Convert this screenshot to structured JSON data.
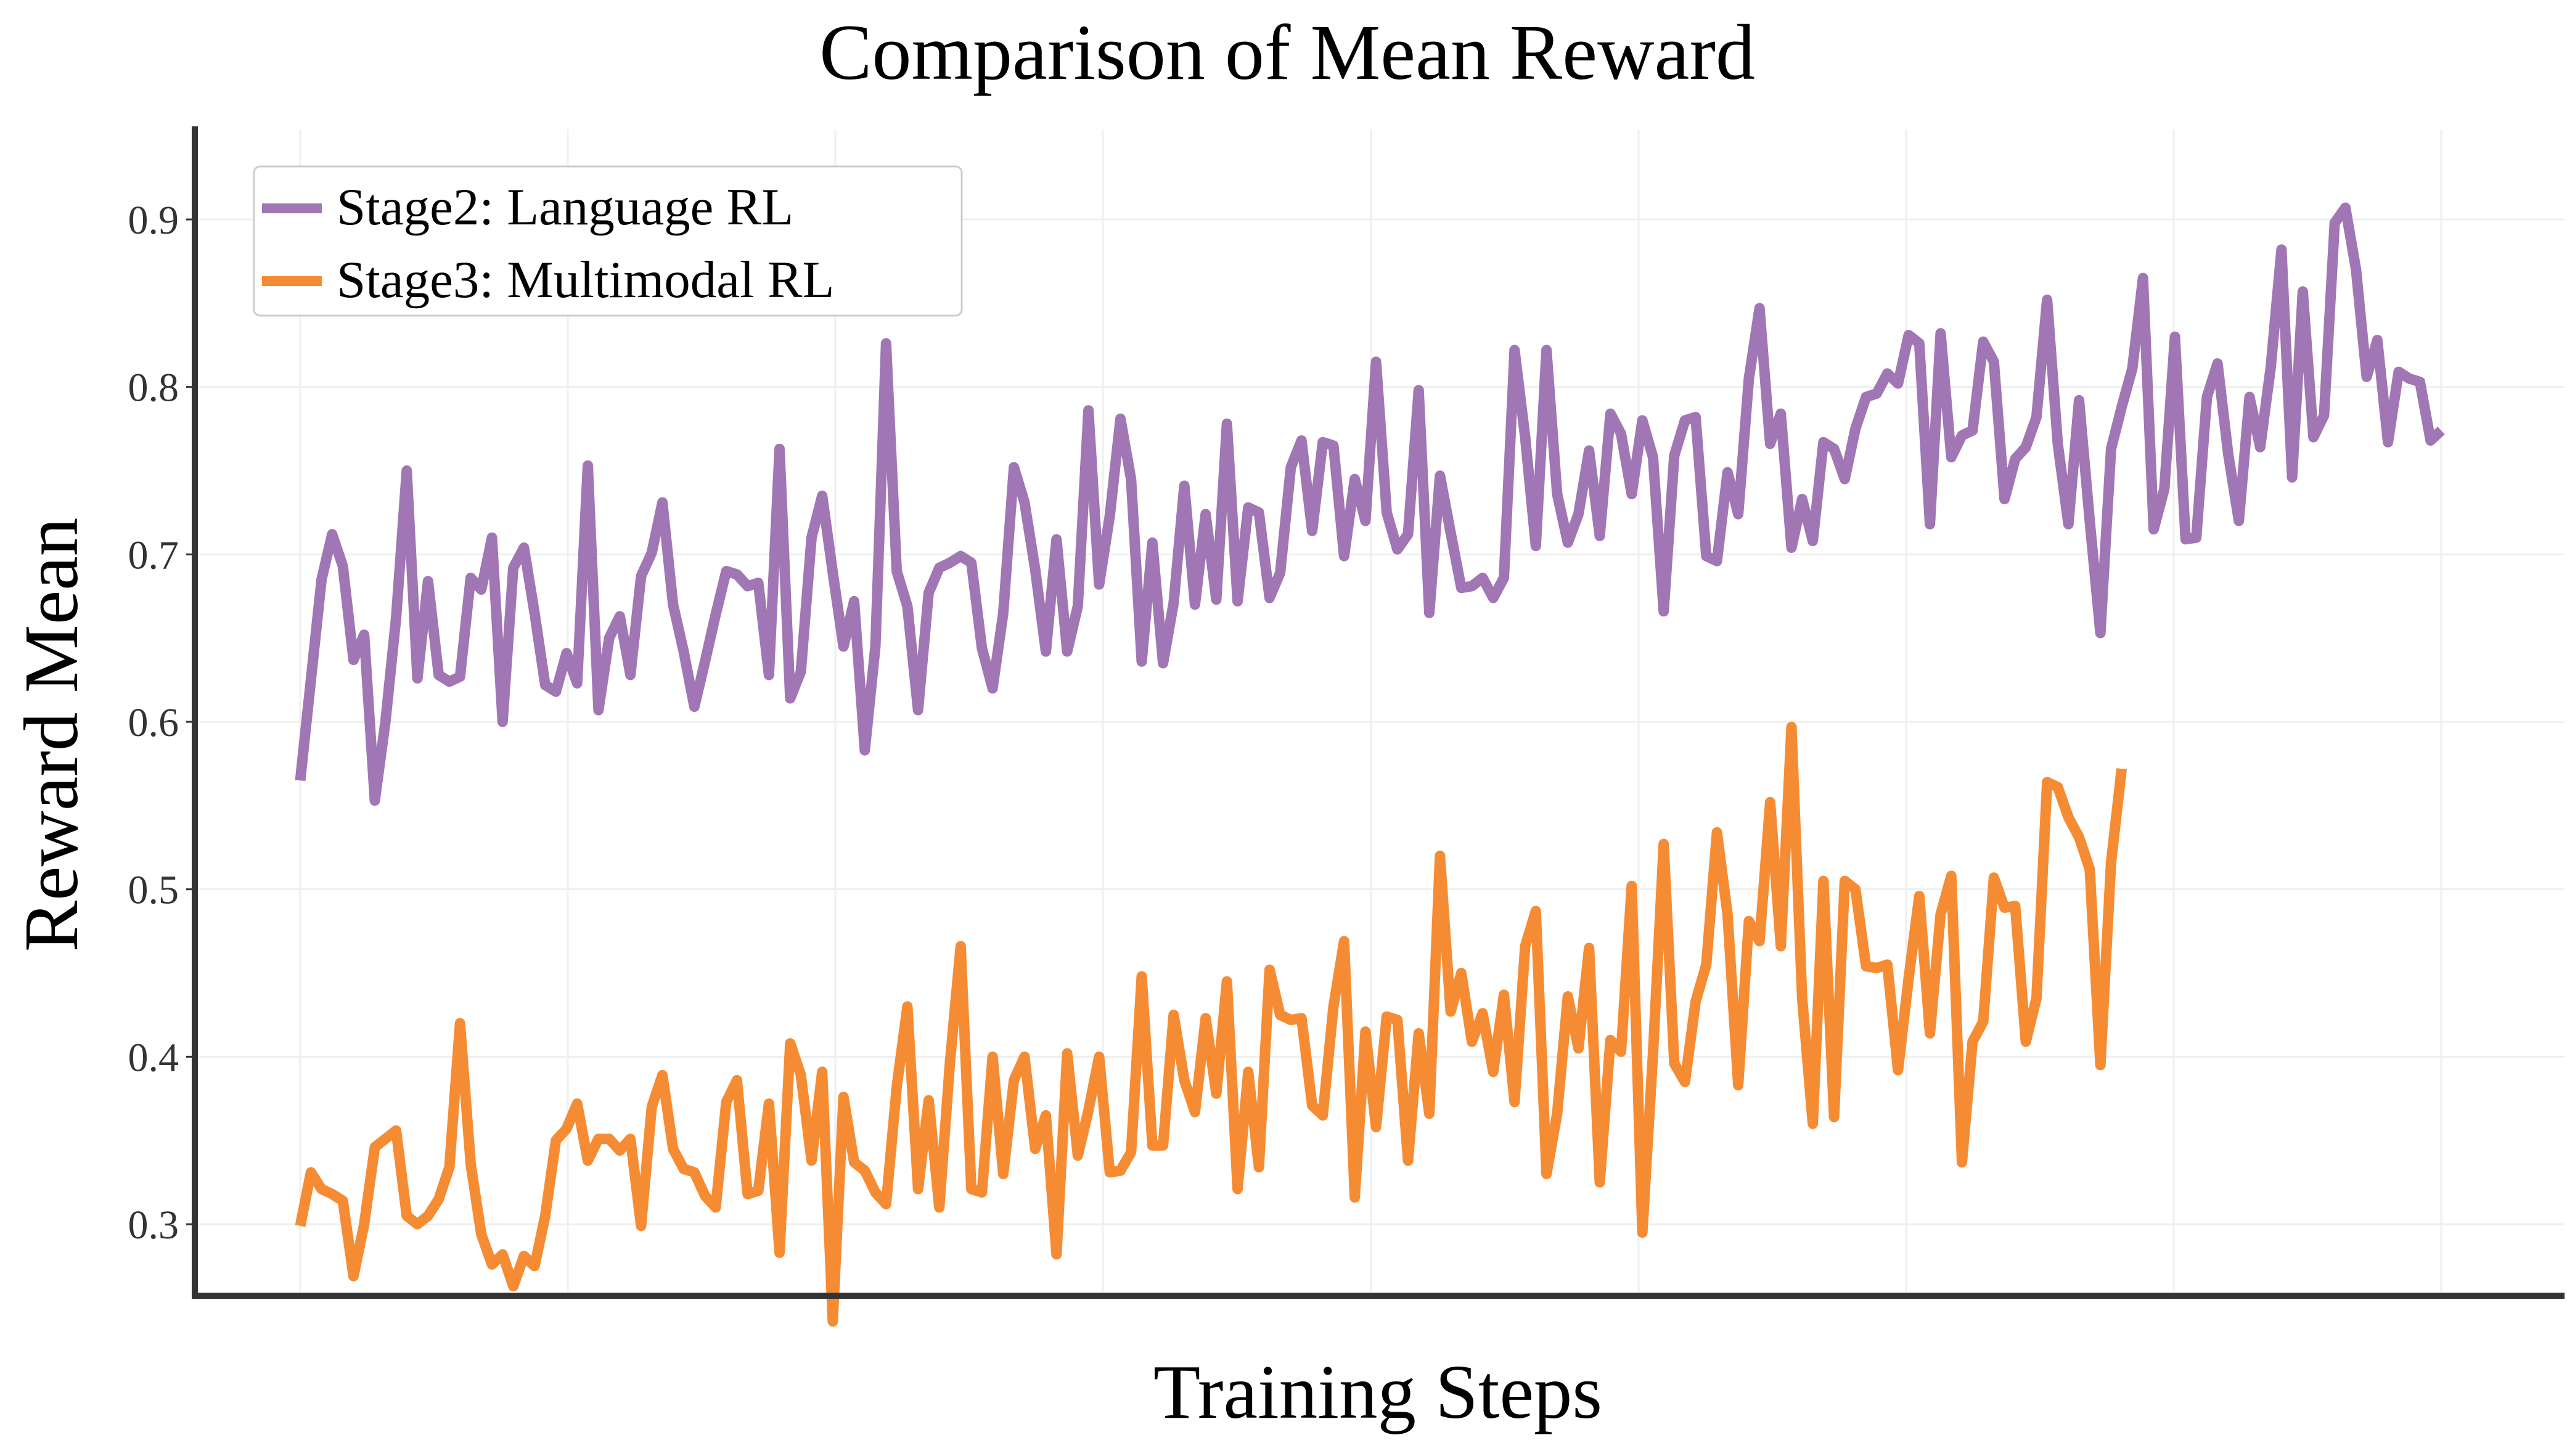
{
  "chart_data": {
    "type": "line",
    "title": "Comparison of Mean Reward",
    "xlabel": "Training Steps",
    "ylabel": "Reward Mean",
    "ylim": [
      0.23,
      0.955
    ],
    "yticks": [
      "0.3",
      "0.4",
      "0.5",
      "0.6",
      "0.7",
      "0.8",
      "0.9"
    ],
    "xticks_labeled": false,
    "grid": true,
    "legend_position": "top-left",
    "series": [
      {
        "name": "Stage2: Language RL",
        "color": "#a176b4",
        "values": [
          0.565,
          0.625,
          0.685,
          0.712,
          0.693,
          0.637,
          0.652,
          0.553,
          0.6,
          0.662,
          0.75,
          0.626,
          0.684,
          0.628,
          0.624,
          0.627,
          0.686,
          0.679,
          0.71,
          0.6,
          0.692,
          0.704,
          0.665,
          0.622,
          0.618,
          0.641,
          0.623,
          0.753,
          0.607,
          0.65,
          0.663,
          0.628,
          0.687,
          0.701,
          0.731,
          0.67,
          0.642,
          0.609,
          0.636,
          0.664,
          0.69,
          0.688,
          0.681,
          0.683,
          0.628,
          0.763,
          0.614,
          0.63,
          0.71,
          0.735,
          0.689,
          0.645,
          0.672,
          0.583,
          0.645,
          0.826,
          0.69,
          0.669,
          0.607,
          0.677,
          0.692,
          0.695,
          0.699,
          0.695,
          0.644,
          0.62,
          0.665,
          0.752,
          0.731,
          0.691,
          0.642,
          0.709,
          0.642,
          0.669,
          0.786,
          0.682,
          0.723,
          0.781,
          0.745,
          0.636,
          0.707,
          0.635,
          0.671,
          0.741,
          0.67,
          0.724,
          0.673,
          0.778,
          0.672,
          0.728,
          0.725,
          0.674,
          0.689,
          0.752,
          0.768,
          0.714,
          0.767,
          0.765,
          0.699,
          0.745,
          0.72,
          0.815,
          0.725,
          0.703,
          0.712,
          0.798,
          0.665,
          0.747,
          0.713,
          0.68,
          0.681,
          0.686,
          0.674,
          0.686,
          0.822,
          0.77,
          0.705,
          0.822,
          0.736,
          0.707,
          0.724,
          0.762,
          0.711,
          0.784,
          0.772,
          0.736,
          0.78,
          0.758,
          0.666,
          0.759,
          0.78,
          0.782,
          0.699,
          0.696,
          0.749,
          0.724,
          0.805,
          0.847,
          0.766,
          0.784,
          0.704,
          0.733,
          0.708,
          0.767,
          0.763,
          0.745,
          0.775,
          0.794,
          0.796,
          0.808,
          0.802,
          0.831,
          0.826,
          0.718,
          0.832,
          0.758,
          0.771,
          0.774,
          0.827,
          0.815,
          0.733,
          0.757,
          0.764,
          0.782,
          0.852,
          0.766,
          0.718,
          0.792,
          0.72,
          0.653,
          0.763,
          0.788,
          0.811,
          0.865,
          0.715,
          0.739,
          0.83,
          0.709,
          0.71,
          0.794,
          0.814,
          0.76,
          0.72,
          0.794,
          0.764,
          0.812,
          0.882,
          0.746,
          0.857,
          0.77,
          0.783,
          0.898,
          0.907,
          0.87,
          0.806,
          0.828,
          0.767,
          0.809,
          0.805,
          0.803,
          0.768,
          0.774
        ]
      },
      {
        "name": "Stage3: Multimodal RL",
        "color": "#f58c33",
        "values": [
          0.299,
          0.331,
          0.321,
          0.318,
          0.314,
          0.269,
          0.3,
          0.346,
          0.351,
          0.356,
          0.305,
          0.3,
          0.305,
          0.315,
          0.334,
          0.42,
          0.336,
          0.294,
          0.276,
          0.282,
          0.263,
          0.281,
          0.275,
          0.305,
          0.35,
          0.357,
          0.372,
          0.338,
          0.351,
          0.351,
          0.344,
          0.351,
          0.299,
          0.37,
          0.389,
          0.345,
          0.333,
          0.331,
          0.317,
          0.31,
          0.373,
          0.386,
          0.318,
          0.32,
          0.372,
          0.283,
          0.408,
          0.389,
          0.338,
          0.391,
          0.242,
          0.376,
          0.337,
          0.332,
          0.319,
          0.312,
          0.382,
          0.43,
          0.321,
          0.374,
          0.31,
          0.397,
          0.466,
          0.321,
          0.319,
          0.4,
          0.33,
          0.386,
          0.4,
          0.345,
          0.365,
          0.282,
          0.402,
          0.341,
          0.368,
          0.4,
          0.331,
          0.332,
          0.343,
          0.448,
          0.347,
          0.347,
          0.425,
          0.386,
          0.367,
          0.423,
          0.378,
          0.445,
          0.321,
          0.391,
          0.334,
          0.452,
          0.425,
          0.422,
          0.423,
          0.371,
          0.365,
          0.43,
          0.469,
          0.316,
          0.415,
          0.358,
          0.424,
          0.422,
          0.338,
          0.414,
          0.366,
          0.52,
          0.427,
          0.45,
          0.409,
          0.426,
          0.391,
          0.437,
          0.373,
          0.466,
          0.487,
          0.33,
          0.366,
          0.436,
          0.405,
          0.465,
          0.325,
          0.41,
          0.403,
          0.502,
          0.295,
          0.402,
          0.527,
          0.396,
          0.385,
          0.433,
          0.455,
          0.534,
          0.485,
          0.383,
          0.481,
          0.469,
          0.552,
          0.466,
          0.597,
          0.435,
          0.36,
          0.505,
          0.364,
          0.505,
          0.5,
          0.454,
          0.453,
          0.455,
          0.392,
          0.447,
          0.496,
          0.414,
          0.485,
          0.508,
          0.337,
          0.409,
          0.421,
          0.507,
          0.489,
          0.49,
          0.409,
          0.435,
          0.564,
          0.561,
          0.543,
          0.531,
          0.512,
          0.395,
          0.516,
          0.572
        ]
      }
    ]
  }
}
